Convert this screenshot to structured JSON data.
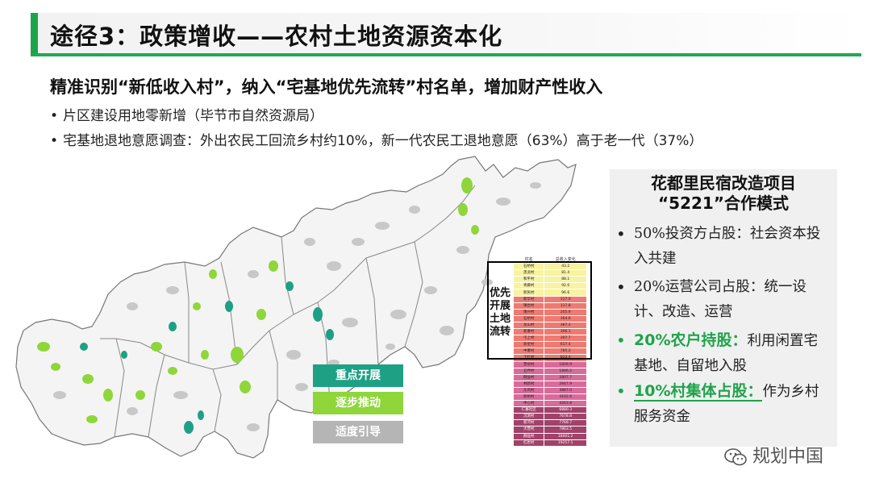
{
  "title": "途径3：政策增收——农村土地资源资本化",
  "headline": "精准识别“新低收入村”，纳入“宅基地优先流转”村名单，增加财产性收入",
  "bullets": [
    "片区建设用地零新增（毕节市自然资源局）",
    "宅基地退地意愿调查：外出农民工回流乡村约10%，新一代农民工退地意愿（63%）高于老一代（37%）"
  ],
  "legend": {
    "focus": "重点开展",
    "gradual": "逐步推动",
    "moderate": "适度引导"
  },
  "colors": {
    "accent_green": "#1fa34a",
    "teal": "#1ea085",
    "lime": "#8ed63a",
    "gray": "#b5b5b5"
  },
  "priority_label": "优先开展土地流转",
  "table": {
    "headers": [
      "村名",
      "总收入变化"
    ],
    "rows": [
      [
        "石桥村",
        "43.2",
        "yellow"
      ],
      [
        "黑泥村",
        "81.4",
        "yellow"
      ],
      [
        "和平村",
        "88.1",
        "yellow"
      ],
      [
        "青藤村",
        "92.0",
        "yellow"
      ],
      [
        "新民村",
        "96.6",
        "yellow"
      ],
      [
        "新华村",
        "117.0",
        "red"
      ],
      [
        "镇台村",
        "117.8",
        "red"
      ],
      [
        "隆兴村",
        "205.9",
        "red"
      ],
      [
        "石桥村",
        "364.6",
        "red"
      ],
      [
        "龙山村",
        "387.3",
        "red"
      ],
      [
        "新寨村",
        "396.1",
        "red"
      ],
      [
        "屯上村",
        "397.7",
        "red"
      ],
      [
        "新星村",
        "617.4",
        "red"
      ],
      [
        "中寨村",
        "785.2",
        "red"
      ],
      [
        "下红村",
        "823.4",
        "red"
      ],
      [
        "营坝村",
        "1609.9",
        "pink"
      ],
      [
        "五伴村",
        "1846.2",
        "pink"
      ],
      [
        "群益村",
        "2807.7",
        "pink"
      ],
      [
        "林新村",
        "2847.9",
        "pink"
      ],
      [
        "东风村",
        "3887.0",
        "pink"
      ],
      [
        "新桥村",
        "4102.6",
        "pink"
      ],
      [
        "中心村",
        "4263.8",
        "pink"
      ],
      [
        "仁寨社区",
        "6880.3",
        "plum"
      ],
      [
        "沉洞村",
        "7678.8",
        "plum"
      ],
      [
        "新河村",
        "7768.7",
        "plum"
      ],
      [
        "大营村",
        "7863.5",
        "plum"
      ],
      [
        "群益村",
        "18401.2",
        "plum"
      ],
      [
        "红岩村",
        "19257.1",
        "plum"
      ]
    ]
  },
  "panel": {
    "title_line1": "花都里民宿改造项目",
    "title_line2": "“5221”合作模式",
    "items": [
      {
        "bullet": "•",
        "text": "50%投资方占股：社会资本投入共建"
      },
      {
        "bullet": "•",
        "text": "20%运营公司占股：统一设计、改造、运营"
      },
      {
        "bullet": "•",
        "emph": "20%农户持股：",
        "text": "利用闲置宅基地、自留地入股"
      },
      {
        "bullet": "•",
        "emph": "10%村集体占股：",
        "text": "作为乡村服务资金"
      }
    ]
  },
  "watermark": "规划中国"
}
